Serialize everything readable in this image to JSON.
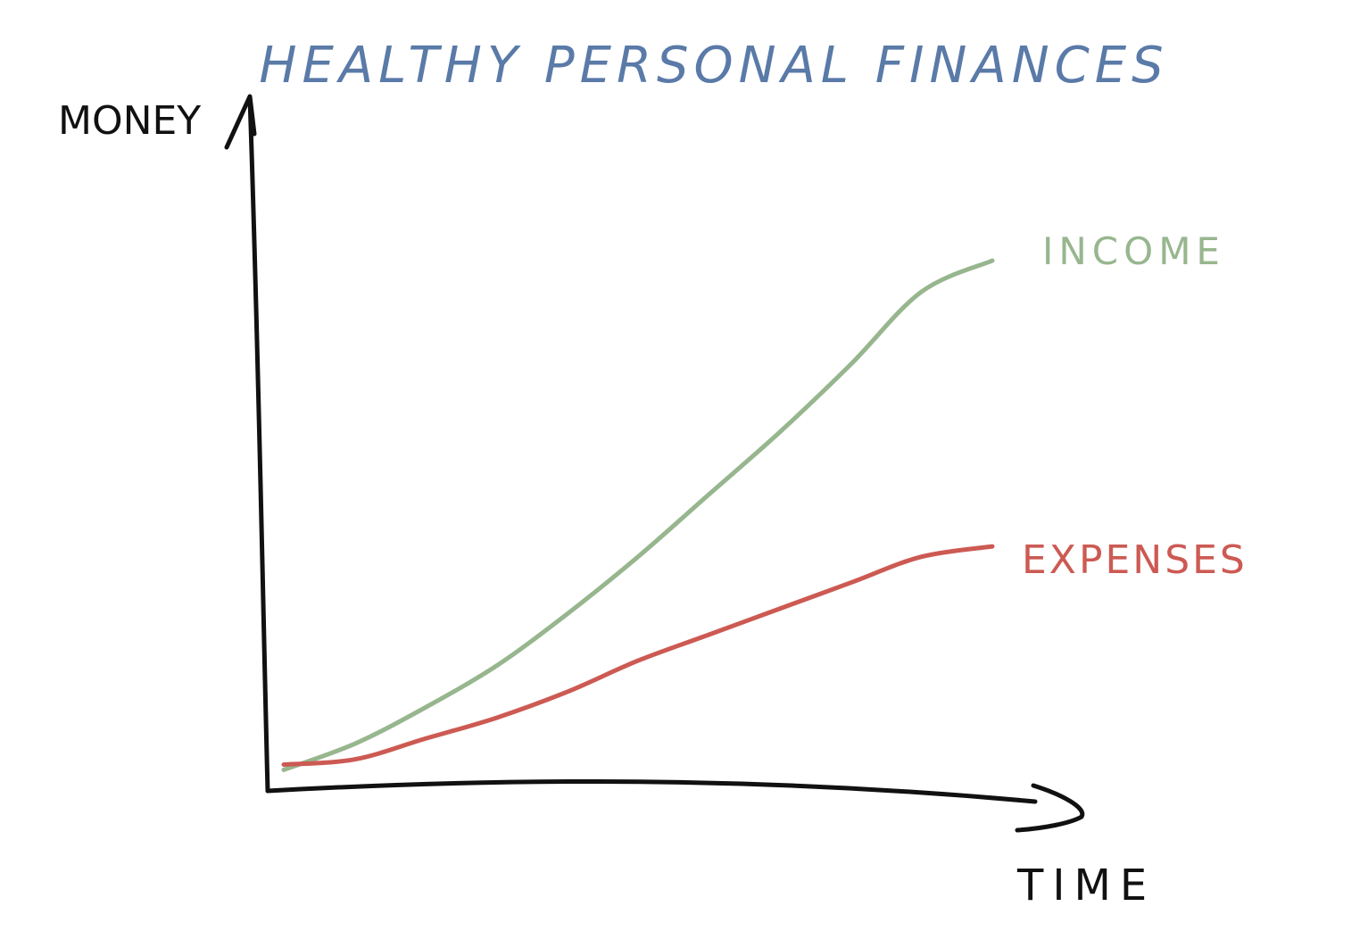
{
  "chart_data": {
    "type": "line",
    "title": "Healthy personal finances",
    "xlabel": "Time",
    "ylabel": "Money",
    "x": [
      0,
      0.1,
      0.2,
      0.3,
      0.4,
      0.5,
      0.6,
      0.7,
      0.8,
      0.9,
      1.0
    ],
    "xlim": [
      0,
      1
    ],
    "ylim": [
      0,
      1
    ],
    "grid": false,
    "axis_ticks": false,
    "style": "hand-drawn sketch",
    "series": [
      {
        "name": "income",
        "color": "#97b68e",
        "label_position": "end",
        "values": [
          0.02,
          0.07,
          0.14,
          0.22,
          0.32,
          0.43,
          0.55,
          0.67,
          0.8,
          0.94,
          1.0
        ]
      },
      {
        "name": "expenses",
        "color": "#cc5a53",
        "label_position": "end",
        "values": [
          0.03,
          0.04,
          0.08,
          0.12,
          0.17,
          0.23,
          0.28,
          0.33,
          0.38,
          0.43,
          0.45
        ]
      }
    ]
  },
  "colors": {
    "title": "#5a7aa8",
    "axes": "#111111",
    "income": "#97b68e",
    "expenses": "#cc5a53"
  }
}
